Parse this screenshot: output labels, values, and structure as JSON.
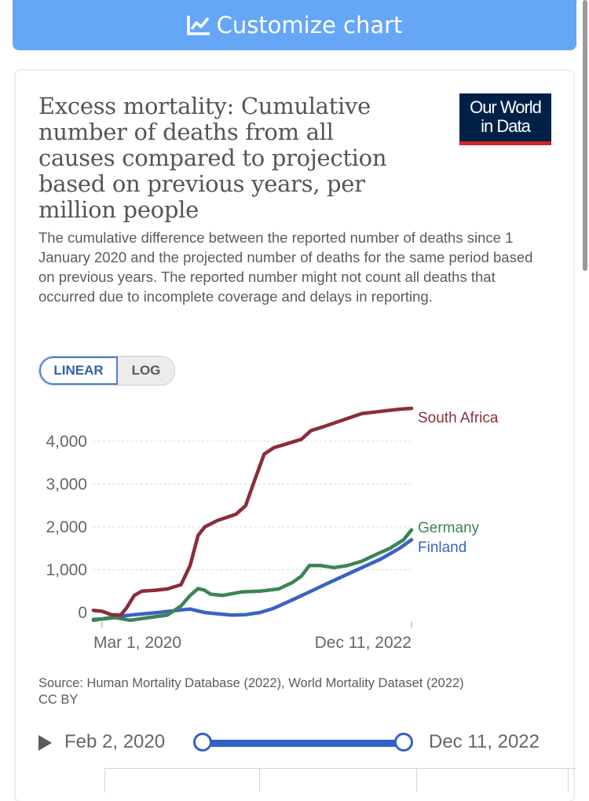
{
  "toolbar": {
    "customize_label": "Customize chart",
    "icon": "line-chart-icon"
  },
  "header": {
    "title": "Excess mortality: Cumulative number of deaths from all causes compared to projection based on previous years, per million people",
    "subtitle": "The cumulative difference between the reported number of deaths since 1 January 2020 and the projected number of deaths for the same period based on previous years. The reported number might not count all deaths that occurred due to incomplete coverage and delays in reporting.",
    "logo_line1": "Our World",
    "logo_line2": "in Data"
  },
  "scale_toggle": {
    "linear": "LINEAR",
    "log": "LOG",
    "selected": "linear"
  },
  "chart_data": {
    "type": "line",
    "x_tick_labels": [
      "Mar 1, 2020",
      "Dec 11, 2022"
    ],
    "y_tick_labels": [
      "0",
      "1,000",
      "2,000",
      "3,000",
      "4,000"
    ],
    "ylim": [
      -300,
      4900
    ],
    "grid": true,
    "series": [
      {
        "name": "South Africa",
        "color": "#8b2d3a",
        "points": [
          [
            "2020-02-02",
            50
          ],
          [
            "2020-03-01",
            30
          ],
          [
            "2020-04-01",
            -50
          ],
          [
            "2020-05-01",
            -60
          ],
          [
            "2020-05-20",
            100
          ],
          [
            "2020-06-15",
            400
          ],
          [
            "2020-07-10",
            500
          ],
          [
            "2020-08-20",
            520
          ],
          [
            "2020-10-01",
            550
          ],
          [
            "2020-11-15",
            650
          ],
          [
            "2020-12-15",
            1100
          ],
          [
            "2021-01-10",
            1800
          ],
          [
            "2021-02-01",
            2000
          ],
          [
            "2021-03-15",
            2150
          ],
          [
            "2021-05-15",
            2300
          ],
          [
            "2021-06-15",
            2500
          ],
          [
            "2021-07-15",
            3100
          ],
          [
            "2021-08-15",
            3700
          ],
          [
            "2021-09-15",
            3850
          ],
          [
            "2021-11-01",
            3950
          ],
          [
            "2021-12-15",
            4050
          ],
          [
            "2022-01-15",
            4250
          ],
          [
            "2022-03-01",
            4350
          ],
          [
            "2022-05-01",
            4500
          ],
          [
            "2022-07-01",
            4650
          ],
          [
            "2022-09-01",
            4700
          ],
          [
            "2022-11-01",
            4750
          ],
          [
            "2022-12-11",
            4770
          ]
        ]
      },
      {
        "name": "Germany",
        "color": "#3d8454",
        "points": [
          [
            "2020-02-02",
            -180
          ],
          [
            "2020-03-01",
            -150
          ],
          [
            "2020-04-15",
            -120
          ],
          [
            "2020-06-01",
            -180
          ],
          [
            "2020-08-01",
            -120
          ],
          [
            "2020-10-01",
            -60
          ],
          [
            "2020-11-15",
            150
          ],
          [
            "2020-12-15",
            400
          ],
          [
            "2021-01-10",
            560
          ],
          [
            "2021-02-01",
            520
          ],
          [
            "2021-02-20",
            430
          ],
          [
            "2021-04-01",
            400
          ],
          [
            "2021-06-01",
            480
          ],
          [
            "2021-08-01",
            500
          ],
          [
            "2021-10-01",
            550
          ],
          [
            "2021-11-15",
            700
          ],
          [
            "2021-12-15",
            850
          ],
          [
            "2022-01-10",
            1100
          ],
          [
            "2022-02-15",
            1100
          ],
          [
            "2022-04-01",
            1050
          ],
          [
            "2022-05-15",
            1100
          ],
          [
            "2022-07-01",
            1200
          ],
          [
            "2022-08-15",
            1350
          ],
          [
            "2022-10-01",
            1500
          ],
          [
            "2022-11-15",
            1700
          ],
          [
            "2022-12-11",
            1930
          ]
        ]
      },
      {
        "name": "Finland",
        "color": "#3a62c2",
        "points": [
          [
            "2020-02-02",
            -160
          ],
          [
            "2020-03-01",
            -150
          ],
          [
            "2020-04-15",
            -100
          ],
          [
            "2020-06-15",
            -50
          ],
          [
            "2020-09-01",
            0
          ],
          [
            "2020-11-15",
            60
          ],
          [
            "2020-12-15",
            80
          ],
          [
            "2021-02-01",
            0
          ],
          [
            "2021-03-15",
            -30
          ],
          [
            "2021-05-01",
            -60
          ],
          [
            "2021-06-15",
            -50
          ],
          [
            "2021-08-01",
            0
          ],
          [
            "2021-09-15",
            100
          ],
          [
            "2021-11-01",
            250
          ],
          [
            "2022-01-01",
            450
          ],
          [
            "2022-03-01",
            650
          ],
          [
            "2022-05-01",
            850
          ],
          [
            "2022-07-01",
            1050
          ],
          [
            "2022-09-01",
            1250
          ],
          [
            "2022-11-01",
            1500
          ],
          [
            "2022-12-11",
            1700
          ]
        ]
      }
    ]
  },
  "source": "Source: Human Mortality Database (2022), World Mortality Dataset (2022)\nCC BY",
  "timeline": {
    "start": "Feb 2, 2020",
    "end": "Dec 11, 2022"
  }
}
